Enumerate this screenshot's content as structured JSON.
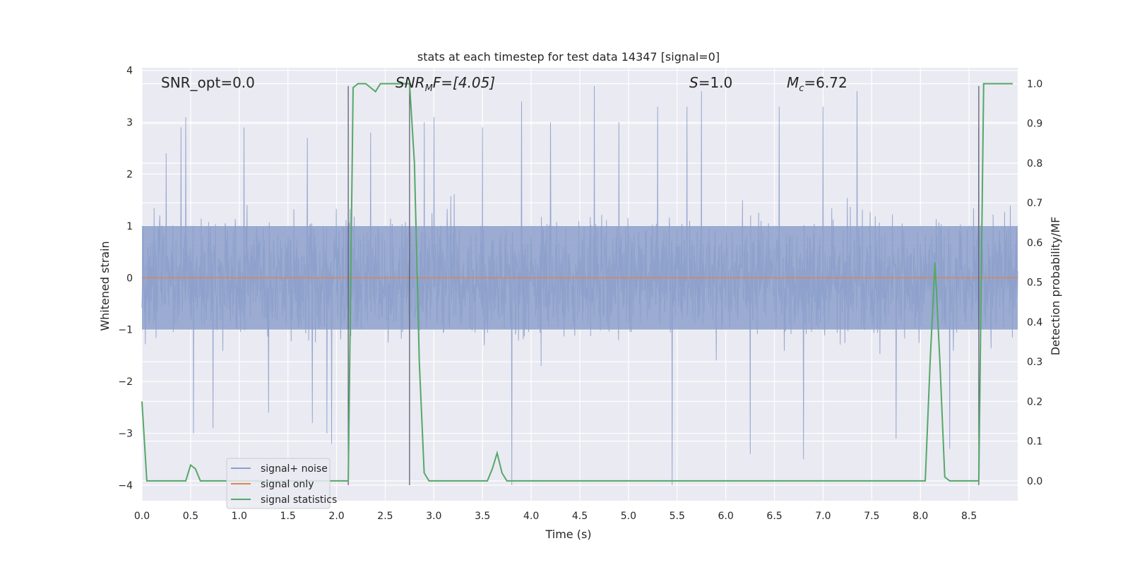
{
  "chart_data": {
    "type": "line",
    "title": "stats at each timestep for test data 14347 [signal=0]",
    "xlabel": "Time (s)",
    "ylabel": "Whitened strain",
    "y2label": "Detection probability/MF",
    "xlim": [
      0.0,
      9.0
    ],
    "ylim": [
      -4.3,
      4.05
    ],
    "y2lim": [
      -0.05,
      1.04
    ],
    "xticks": [
      "0.0",
      "0.5",
      "1.0",
      "1.5",
      "2.0",
      "2.5",
      "3.0",
      "3.5",
      "4.0",
      "4.5",
      "5.0",
      "5.5",
      "6.0",
      "6.5",
      "7.0",
      "7.5",
      "8.0",
      "8.5"
    ],
    "yticks": [
      "−4",
      "−3",
      "−2",
      "−1",
      "0",
      "1",
      "2",
      "3",
      "4"
    ],
    "y2ticks": [
      "0.0",
      "0.1",
      "0.2",
      "0.3",
      "0.4",
      "0.5",
      "0.6",
      "0.7",
      "0.8",
      "0.9",
      "1.0"
    ],
    "grid": true,
    "legend_placement": "lower-left",
    "annotations": {
      "snr_opt": "SNR_opt=0.0",
      "snr_mf": "SNR",
      "snr_mf_sub": "M",
      "snr_mf_tail": "F=[4.05]",
      "s_italic": "S",
      "s_tail": "=1.0",
      "mc_italic": "M",
      "mc_sub": "c",
      "mc_tail": "=6.72"
    },
    "series": [
      {
        "name": "signal+ noise",
        "color": "#8da0cb",
        "style": "dense noise, approximately ±1.5 typical, peaks to ±3.7",
        "peaks": [
          [
            0.25,
            2.4
          ],
          [
            0.4,
            2.9
          ],
          [
            0.45,
            3.1
          ],
          [
            0.53,
            -3.0
          ],
          [
            0.73,
            -2.9
          ],
          [
            1.05,
            2.9
          ],
          [
            1.3,
            -2.6
          ],
          [
            1.7,
            2.7
          ],
          [
            1.75,
            -2.8
          ],
          [
            1.9,
            -3.0
          ],
          [
            1.95,
            -3.2
          ],
          [
            2.35,
            2.8
          ],
          [
            2.9,
            3.0
          ],
          [
            3.0,
            3.1
          ],
          [
            3.5,
            2.9
          ],
          [
            3.8,
            -4.0
          ],
          [
            3.9,
            3.4
          ],
          [
            4.2,
            3.0
          ],
          [
            4.65,
            3.7
          ],
          [
            4.9,
            3.0
          ],
          [
            5.3,
            3.3
          ],
          [
            5.45,
            -4.0
          ],
          [
            5.6,
            3.3
          ],
          [
            5.75,
            3.6
          ],
          [
            6.25,
            -3.4
          ],
          [
            6.55,
            3.3
          ],
          [
            6.8,
            -3.5
          ],
          [
            7.0,
            3.3
          ],
          [
            7.35,
            3.6
          ],
          [
            7.75,
            -3.1
          ],
          [
            8.3,
            -3.3
          ],
          [
            8.6,
            2.9
          ]
        ]
      },
      {
        "name": "signal only",
        "color": "#dd8452",
        "x": [
          0.0,
          9.0
        ],
        "y": [
          0.0,
          0.0
        ]
      },
      {
        "name": "signal statistics",
        "color": "#55a868",
        "axis": "right",
        "x": [
          0.0,
          0.05,
          0.1,
          0.15,
          0.2,
          0.25,
          0.3,
          0.35,
          0.4,
          0.45,
          0.5,
          0.55,
          0.6,
          0.65,
          0.7,
          0.75,
          0.8,
          1.0,
          1.5,
          2.0,
          2.12,
          2.17,
          2.22,
          2.3,
          2.35,
          2.4,
          2.45,
          2.5,
          2.6,
          2.7,
          2.75,
          2.8,
          2.85,
          2.9,
          2.95,
          3.0,
          3.2,
          3.4,
          3.5,
          3.55,
          3.6,
          3.65,
          3.7,
          3.75,
          4.0,
          5.0,
          6.0,
          7.0,
          8.0,
          8.05,
          8.1,
          8.15,
          8.2,
          8.25,
          8.3,
          8.35,
          8.4,
          8.5,
          8.55,
          8.6,
          8.65,
          8.7,
          8.8,
          8.95
        ],
        "y": [
          0.2,
          0.0,
          -0.0,
          0.0,
          0.0,
          0.0,
          0.0,
          0.0,
          0.0,
          0.0,
          0.04,
          0.03,
          0.0,
          0.0,
          0.0,
          0.0,
          0.0,
          0.0,
          0.0,
          0.0,
          0.0,
          0.99,
          1.0,
          1.0,
          0.99,
          0.98,
          1.0,
          1.0,
          1.0,
          1.0,
          1.0,
          0.8,
          0.3,
          0.02,
          0.0,
          0.0,
          0.0,
          0.0,
          0.0,
          0.0,
          0.03,
          0.07,
          0.02,
          0.0,
          0.0,
          0.0,
          0.0,
          0.0,
          0.0,
          0.0,
          0.3,
          0.55,
          0.3,
          0.01,
          0.0,
          0.0,
          0.0,
          0.0,
          0.0,
          0.0,
          1.0,
          1.0,
          1.0,
          1.0
        ]
      }
    ],
    "vlines": [
      2.12,
      2.75,
      8.6
    ],
    "vline_range": [
      -4.0,
      3.7
    ]
  }
}
